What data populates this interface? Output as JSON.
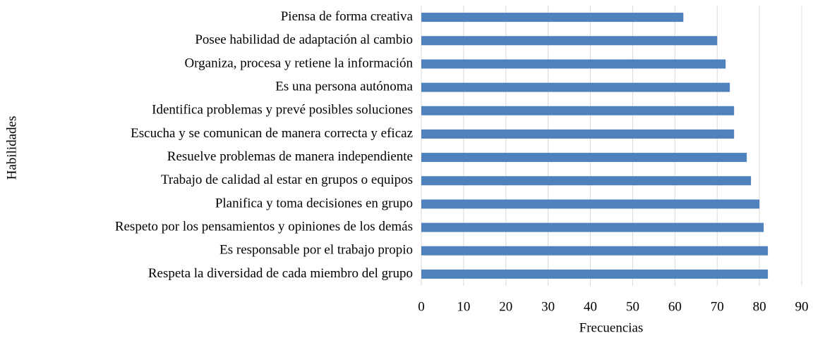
{
  "chart_data": {
    "type": "barh",
    "xlabel": "Frecuencias",
    "ylabel": "Habilidades",
    "categories": [
      "Piensa de forma creativa",
      "Posee habilidad de adaptación al cambio",
      "Organiza, procesa y retiene la información",
      "Es una persona autónoma",
      "Identifica problemas y prevé posibles soluciones",
      "Escucha y se comunican de manera correcta y eficaz",
      "Resuelve problemas de manera independiente",
      "Trabajo de calidad al estar en grupos o equipos",
      "Planifica y toma decisiones en grupo",
      "Respeto por los pensamientos y opiniones de los demás",
      "Es responsable por el trabajo propio",
      "Respeta la diversidad de cada miembro del grupo"
    ],
    "values": [
      62,
      70,
      72,
      73,
      74,
      74,
      77,
      78,
      80,
      81,
      82,
      82
    ],
    "color": "#4f81bd",
    "xlim": [
      0,
      90
    ],
    "xticks": [
      0,
      10,
      20,
      30,
      40,
      50,
      60,
      70,
      80,
      90
    ],
    "grid": true
  }
}
